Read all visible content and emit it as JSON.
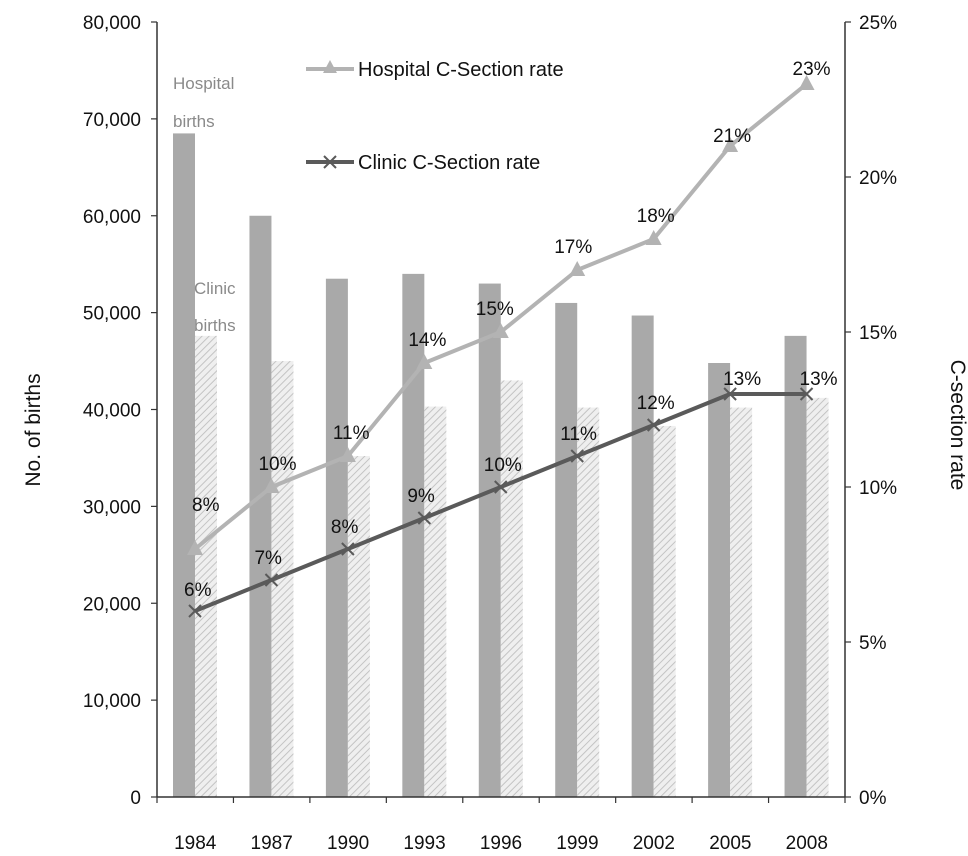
{
  "chart_data": {
    "type": "bar",
    "categories": [
      "1984",
      "1987",
      "1990",
      "1993",
      "1996",
      "1999",
      "2002",
      "2005",
      "2008"
    ],
    "series": [
      {
        "name": "Hospital births",
        "kind": "bar",
        "axis": "left",
        "color": "#a9a9a9",
        "values": [
          68500,
          60000,
          53500,
          54000,
          53000,
          51000,
          49700,
          44800,
          47600
        ]
      },
      {
        "name": "Clinic births",
        "kind": "bar",
        "axis": "left",
        "color": "#d6d6d6",
        "pattern": "hatched",
        "values": [
          47600,
          45000,
          35200,
          40300,
          43000,
          40200,
          38300,
          40200,
          41200
        ]
      },
      {
        "name": "Hospital C-Section rate",
        "kind": "line",
        "axis": "right",
        "color": "#b3b3b3",
        "marker": "triangle",
        "values": [
          8,
          10,
          11,
          14,
          15,
          17,
          18,
          21,
          23
        ],
        "labels": [
          "8%",
          "10%",
          "11%",
          "14%",
          "15%",
          "17%",
          "18%",
          "21%",
          "23%"
        ]
      },
      {
        "name": "Clinic C-Section rate",
        "kind": "line",
        "axis": "right",
        "color": "#5a5a5a",
        "marker": "x",
        "values": [
          6,
          7,
          8,
          9,
          10,
          11,
          12,
          13,
          13
        ],
        "labels": [
          "6%",
          "7%",
          "8%",
          "9%",
          "10%",
          "11%",
          "12%",
          "13%",
          "13%"
        ]
      }
    ],
    "ylabel": "No. of  births",
    "ylim": [
      0,
      80000
    ],
    "yticks": [
      "0",
      "10,000",
      "20,000",
      "30,000",
      "40,000",
      "50,000",
      "60,000",
      "70,000",
      "80,000"
    ],
    "y2label": "C-section  rate",
    "y2lim": [
      0,
      25
    ],
    "y2ticks": [
      "0%",
      "5%",
      "10%",
      "15%",
      "20%",
      "25%"
    ],
    "annotations": {
      "hospital_line1": "Hospital",
      "hospital_line2": "births",
      "clinic_line1": "Clinic",
      "clinic_line2": "births"
    },
    "legend": [
      "Hospital C-Section rate",
      "Clinic C-Section rate"
    ],
    "legend_position": "top-center",
    "grid": false
  }
}
